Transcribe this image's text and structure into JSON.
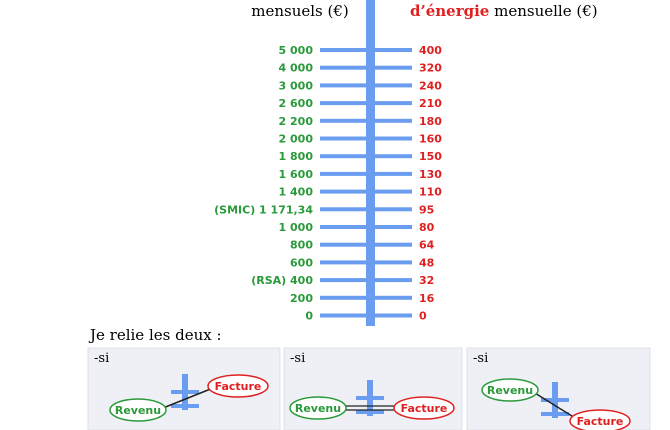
{
  "header": {
    "left_title": "mensuels (€)",
    "right_title_bold": "d’énergie",
    "right_title_rest": " mensuelle (€)"
  },
  "scale": {
    "left": [
      "5 000",
      "4 000",
      "3 000",
      "2 600",
      "2 200",
      "2 000",
      "1 800",
      "1 600",
      "1 400",
      "(SMIC) 1 171,34",
      "1 000",
      "800",
      "600",
      "(RSA) 400",
      "200",
      "0"
    ],
    "right": [
      "400",
      "320",
      "240",
      "210",
      "180",
      "160",
      "150",
      "130",
      "110",
      "95",
      "80",
      "64",
      "48",
      "32",
      "16",
      "0"
    ]
  },
  "caption": "Je relie les deux :",
  "panels": [
    {
      "prefix": "-si",
      "left": "Revenu",
      "right": "Facture"
    },
    {
      "prefix": "-si",
      "left": "Revenu",
      "right": "Facture"
    },
    {
      "prefix": "-si",
      "left": "Revenu",
      "right": "Facture"
    }
  ]
}
